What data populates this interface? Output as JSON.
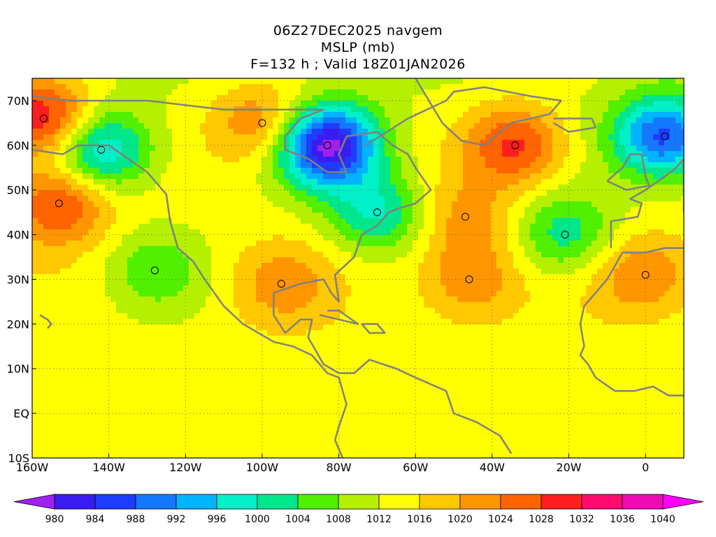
{
  "title": {
    "line1": "06Z27DEC2025 navgem",
    "line2": "MSLP (mb)",
    "line3": "F=132 h ; Valid 18Z01JAN2026"
  },
  "map": {
    "lon_range": [
      -160,
      10
    ],
    "lat_range": [
      -10,
      75
    ],
    "lat_labels": [
      "70N",
      "60N",
      "50N",
      "40N",
      "30N",
      "20N",
      "10N",
      "EQ",
      "10S"
    ],
    "lat_values": [
      70,
      60,
      50,
      40,
      30,
      20,
      10,
      0,
      -10
    ],
    "lon_labels": [
      "160W",
      "140W",
      "120W",
      "100W",
      "80W",
      "60W",
      "40W",
      "20W",
      "0"
    ],
    "lon_values": [
      -160,
      -140,
      -120,
      -100,
      -80,
      -60,
      -40,
      -20,
      0
    ],
    "gridlines": "dotted",
    "coastline_color": "#808080",
    "features": [
      {
        "type": "low",
        "lon": -83,
        "lat": 60,
        "value": 980
      },
      {
        "type": "low",
        "lon": 5,
        "lat": 62,
        "value": 988
      },
      {
        "type": "low",
        "lon": -142,
        "lat": 59,
        "value": 996
      },
      {
        "type": "low",
        "lon": -70,
        "lat": 45,
        "value": 1000
      },
      {
        "type": "low",
        "lon": -21,
        "lat": 40,
        "value": 1002
      },
      {
        "type": "low",
        "lon": -128,
        "lat": 32,
        "value": 1006
      },
      {
        "type": "high",
        "lon": -153,
        "lat": 47,
        "value": 1030
      },
      {
        "type": "high",
        "lon": -157,
        "lat": 66,
        "value": 1034
      },
      {
        "type": "high",
        "lon": -34,
        "lat": 60,
        "value": 1030
      },
      {
        "type": "high",
        "lon": -46,
        "lat": 30,
        "value": 1024
      },
      {
        "type": "high",
        "lon": -47,
        "lat": 44,
        "value": 1022
      },
      {
        "type": "high",
        "lon": 0,
        "lat": 31,
        "value": 1024
      },
      {
        "type": "high",
        "lon": -95,
        "lat": 29,
        "value": 1022
      },
      {
        "type": "high",
        "lon": -100,
        "lat": 65,
        "value": 1026
      }
    ]
  },
  "colorbar": {
    "labels": [
      "980",
      "984",
      "988",
      "992",
      "996",
      "1000",
      "1004",
      "1008",
      "1012",
      "1016",
      "1020",
      "1024",
      "1028",
      "1032",
      "1036",
      "1040"
    ],
    "colors": [
      "#a020f0",
      "#3b1cf0",
      "#1e3cff",
      "#1478ff",
      "#00b4ff",
      "#00f0c8",
      "#00e68c",
      "#50f000",
      "#b4f000",
      "#ffff00",
      "#ffc800",
      "#ff9600",
      "#ff6400",
      "#ff1e1e",
      "#ff0a6e",
      "#f00ab4",
      "#ff00ff"
    ]
  }
}
